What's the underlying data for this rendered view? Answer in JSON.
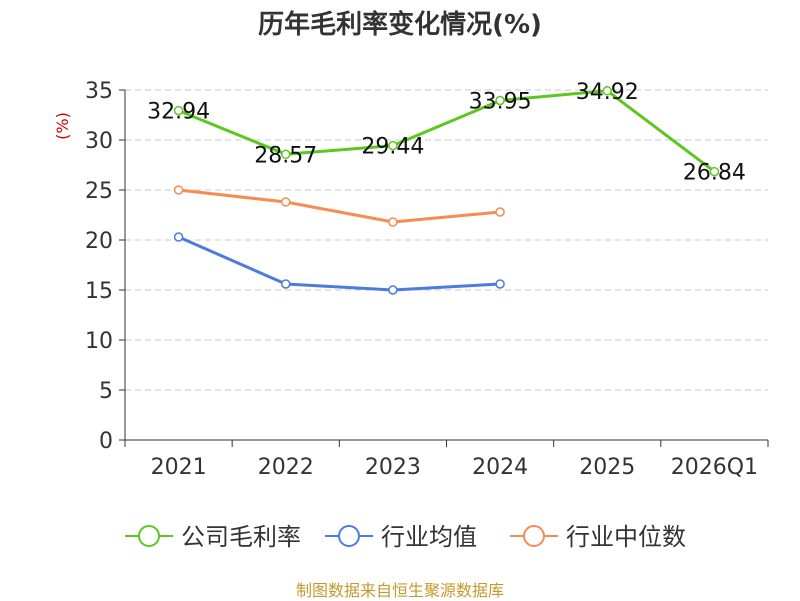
{
  "chart_data": {
    "type": "line",
    "title": "历年毛利率变化情况(%)",
    "xlabel": "",
    "ylabel": "(%)",
    "ylim": [
      0,
      35
    ],
    "yticks": [
      0,
      5,
      10,
      15,
      20,
      25,
      30,
      35
    ],
    "categories": [
      "2021",
      "2022",
      "2023",
      "2024",
      "2025",
      "2026Q1"
    ],
    "grid": true,
    "legend_position": "bottom",
    "series": [
      {
        "name": "公司毛利率",
        "color": "#5cc71e",
        "values": [
          32.94,
          28.57,
          29.44,
          33.95,
          34.92,
          26.84
        ],
        "labels": [
          "32.94",
          "28.57",
          "29.44",
          "33.95",
          "34.92",
          "26.84"
        ],
        "show_labels": true
      },
      {
        "name": "行业均值",
        "color": "#4b7be0",
        "values": [
          20.3,
          15.6,
          15.0,
          15.6,
          null,
          null
        ],
        "show_labels": false
      },
      {
        "name": "行业中位数",
        "color": "#f68c54",
        "values": [
          25.0,
          23.8,
          21.8,
          22.8,
          null,
          null
        ],
        "show_labels": false
      }
    ]
  },
  "source": "制图数据来自恒生聚源数据库"
}
